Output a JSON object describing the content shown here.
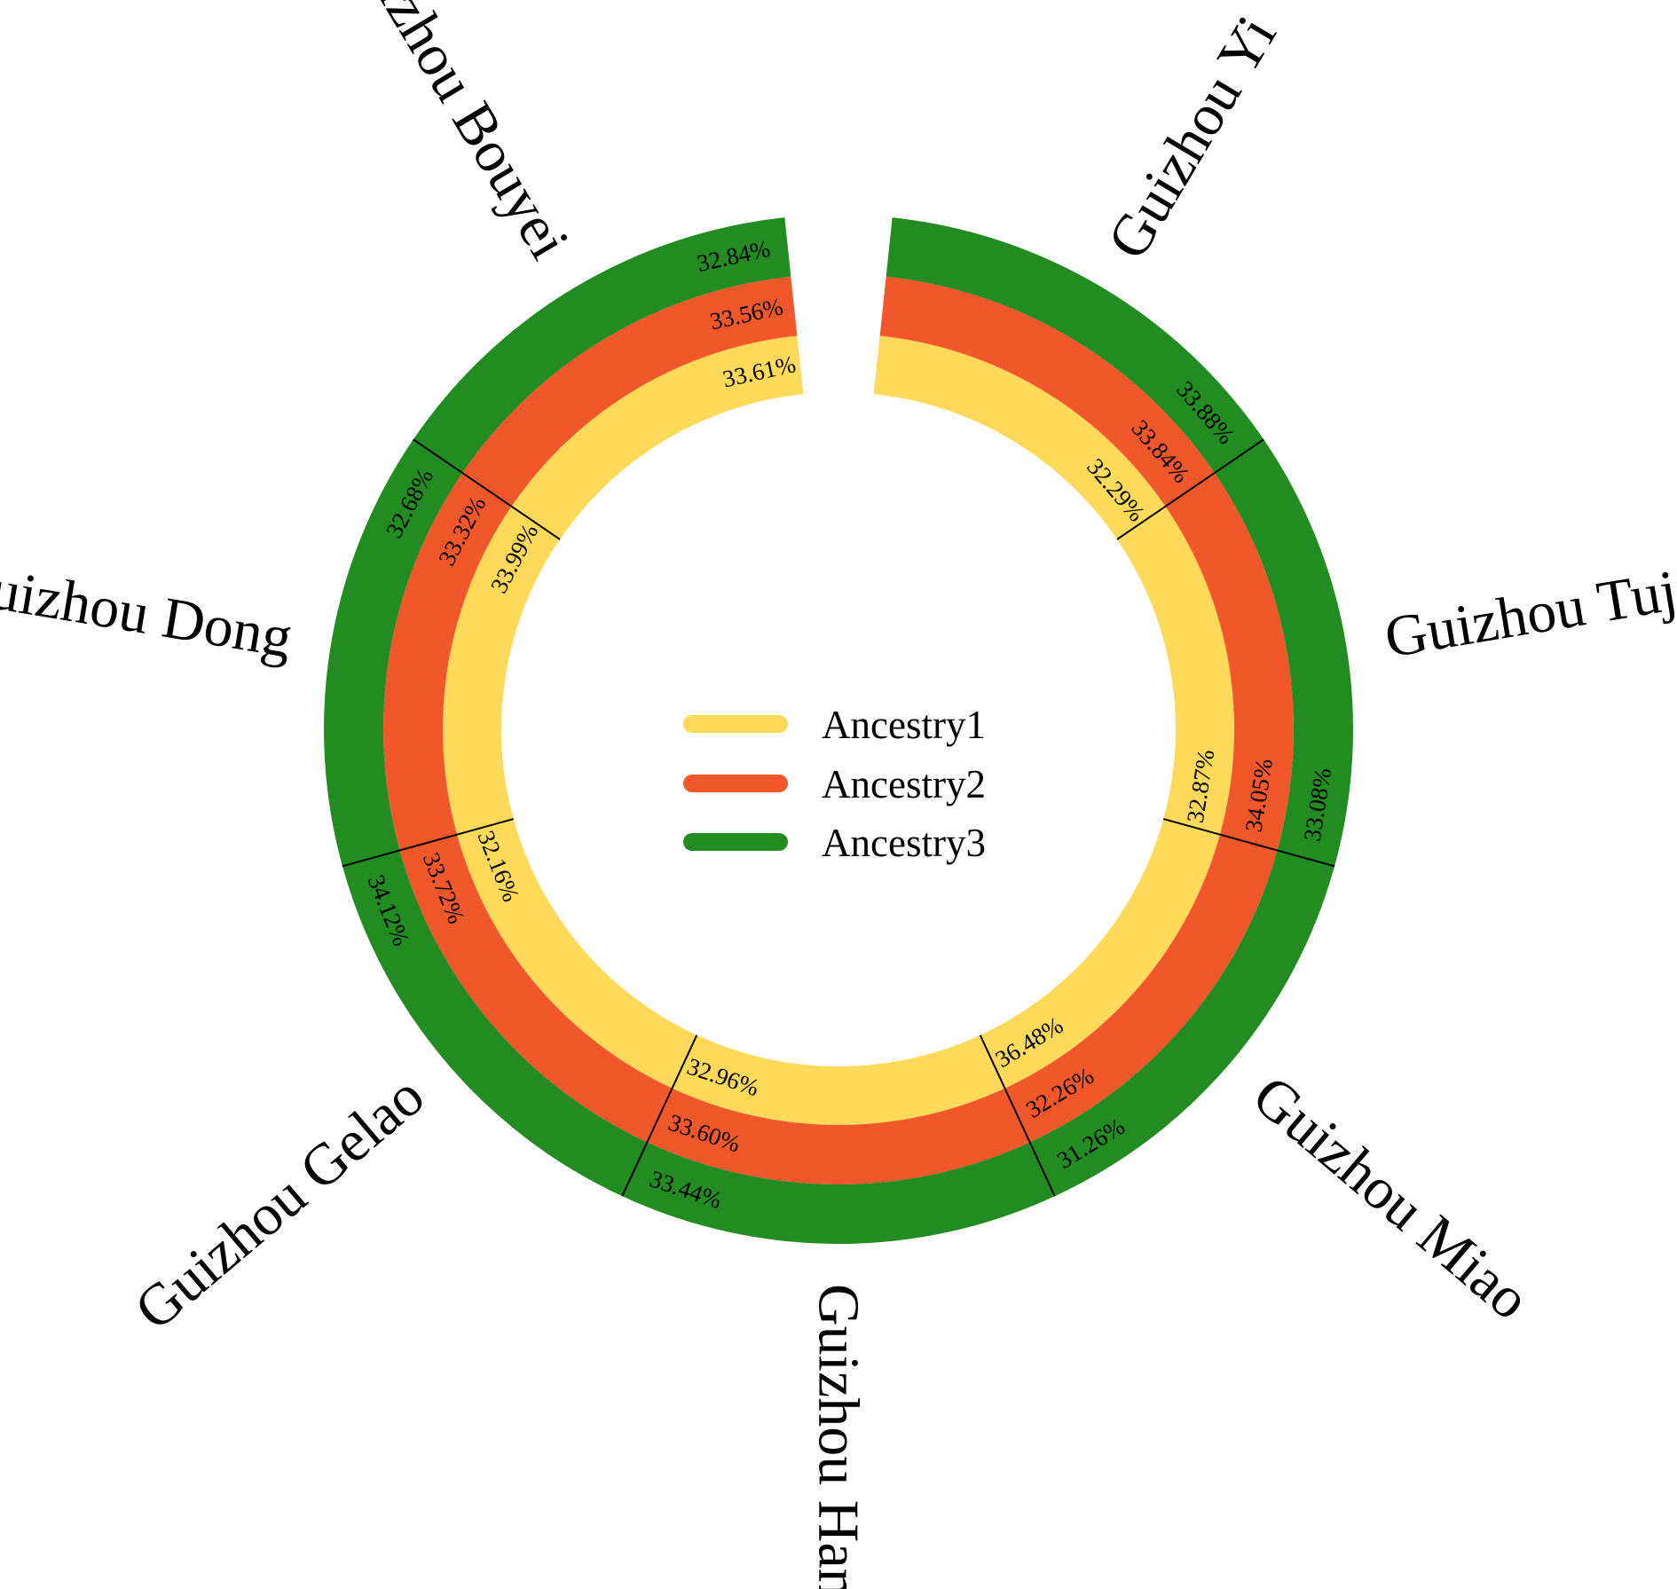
{
  "chart_data": {
    "type": "radial_bar",
    "groups": [
      "Guizhou Yi",
      "Guizhou Tujia",
      "Guizhou Miao",
      "Guizhou Han",
      "Guizhou Gelao",
      "Guizhou Dong",
      "Guizhou Bouyei"
    ],
    "series": [
      {
        "name": "Ancestry1",
        "color": "#FFD95A",
        "values": [
          32.29,
          32.87,
          36.48,
          32.96,
          32.16,
          33.99,
          33.61
        ],
        "labels": [
          "32.29%",
          "32.87%",
          "36.48%",
          "32.96%",
          "32.16%",
          "33.99%",
          "33.61%"
        ]
      },
      {
        "name": "Ancestry2",
        "color": "#F0582C",
        "values": [
          33.84,
          34.05,
          32.26,
          33.6,
          33.72,
          33.32,
          33.56
        ],
        "labels": [
          "33.84%",
          "34.05%",
          "32.26%",
          "33.60%",
          "33.72%",
          "33.32%",
          "33.56%"
        ]
      },
      {
        "name": "Ancestry3",
        "color": "#228B22",
        "values": [
          33.88,
          33.08,
          31.26,
          33.44,
          34.12,
          32.68,
          32.84
        ],
        "labels": [
          "33.88%",
          "33.08%",
          "31.26%",
          "33.44%",
          "34.12%",
          "32.68%",
          "32.84%"
        ]
      }
    ],
    "legend_position": "center"
  }
}
